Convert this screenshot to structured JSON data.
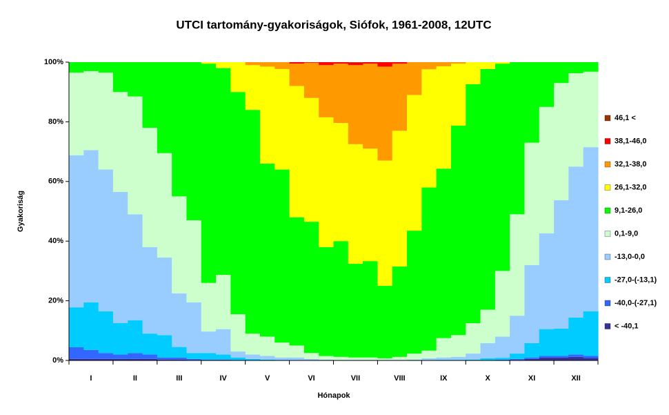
{
  "chart_data": {
    "type": "stacked_bar_100",
    "title": "UTCI tartomány-gyakoriságok, Siófok, 1961-2008, 12UTC",
    "x_label": "Hónapok",
    "y_label": "Gyakoriság",
    "categories": [
      null,
      "I",
      null,
      null,
      "II",
      null,
      null,
      "III",
      null,
      null,
      "IV",
      null,
      null,
      "V",
      null,
      null,
      "VI",
      null,
      null,
      "VII",
      null,
      null,
      "VIII",
      null,
      null,
      "IX",
      null,
      null,
      "X",
      null,
      null,
      "XI",
      null,
      null,
      "XII",
      null
    ],
    "ylim": [
      0,
      100
    ],
    "yticks": [
      {
        "value": 0,
        "label": "0%"
      },
      {
        "value": 20,
        "label": "20%"
      },
      {
        "value": 40,
        "label": "40%"
      },
      {
        "value": 60,
        "label": "60%"
      },
      {
        "value": 80,
        "label": "80%"
      },
      {
        "value": 100,
        "label": "100%"
      }
    ],
    "legend": "right",
    "series": [
      {
        "name": "< -40,1",
        "color": "#333399",
        "values": [
          0.5,
          0.5,
          0.5,
          0.5,
          0.5,
          0.5,
          0.3,
          0.3,
          0.2,
          0.1,
          0.1,
          0,
          0,
          0,
          0,
          0,
          0,
          0,
          0,
          0,
          0,
          0,
          0,
          0,
          0,
          0,
          0,
          0,
          0,
          0.1,
          0.2,
          0.5,
          1,
          1,
          1.2,
          0.8
        ]
      },
      {
        "name": "-40,0-(-27,1)",
        "color": "#3366ff",
        "values": [
          3.9,
          3.0,
          2.0,
          1.5,
          2.0,
          1.5,
          0.7,
          0.7,
          0.3,
          0.2,
          0.2,
          0.2,
          0,
          0,
          0,
          0,
          0,
          0,
          0,
          0,
          0,
          0,
          0,
          0,
          0,
          0,
          0,
          0,
          0.1,
          0.2,
          0.3,
          0.5,
          0.5,
          0.5,
          0.8,
          0.7
        ]
      },
      {
        "name": "-27,0-(-13,1)",
        "color": "#00ccff",
        "values": [
          13.4,
          16.0,
          14.0,
          10.5,
          11.0,
          7.0,
          7.5,
          3.5,
          2.0,
          2.2,
          1.7,
          0.8,
          0.5,
          0.3,
          0.2,
          0,
          0,
          0,
          0,
          0,
          0,
          0,
          0,
          0,
          0,
          0.2,
          0.2,
          0.3,
          0.6,
          0.6,
          1.8,
          4.8,
          9.0,
          9.2,
          12.4,
          15.0
        ]
      },
      {
        "name": "-13,0-0,0",
        "color": "#99ccff",
        "values": [
          51.0,
          51.0,
          47.5,
          44.0,
          35.5,
          29.0,
          26.0,
          18.0,
          17.0,
          7.2,
          8.5,
          2.0,
          1.5,
          1.2,
          0.8,
          1.0,
          0.5,
          0.3,
          0.2,
          0.2,
          0.2,
          0.2,
          0.2,
          0.3,
          0.7,
          0.8,
          1.0,
          2.0,
          5.1,
          7.1,
          12.7,
          26.2,
          32.1,
          43.0,
          50.6,
          55.0
        ]
      },
      {
        "name": "0,1-9,0",
        "color": "#ccffcc",
        "values": [
          27.7,
          26.5,
          32.5,
          33.5,
          39.5,
          40.0,
          35.0,
          32.5,
          27.5,
          16.3,
          18.2,
          12.5,
          7.0,
          6.5,
          5.0,
          4.0,
          2.0,
          1.2,
          1.0,
          0.8,
          0.8,
          0.5,
          1.0,
          2.0,
          2.6,
          6.5,
          7.3,
          10.2,
          11.2,
          22.0,
          34.0,
          41.0,
          42.4,
          39.3,
          31.3,
          25.3
        ]
      },
      {
        "name": "9,1-26,0",
        "color": "#00ff00",
        "values": [
          3.5,
          3.0,
          3.5,
          10.0,
          11.5,
          22.0,
          30.5,
          45.0,
          53.0,
          73.5,
          69.3,
          74.5,
          75.0,
          58.0,
          58.0,
          43.0,
          44.0,
          36.5,
          38.8,
          31.4,
          32.3,
          24.3,
          30.3,
          41.2,
          54.7,
          56.8,
          70.2,
          80.1,
          80.7,
          69.5,
          51.0,
          27.0,
          15.0,
          7.0,
          3.7,
          3.2
        ]
      },
      {
        "name": "26,1-32,0",
        "color": "#ffff00",
        "values": [
          0,
          0,
          0,
          0,
          0,
          0,
          0,
          0,
          0,
          0.5,
          2.0,
          10.0,
          15.0,
          32.5,
          33.7,
          44.0,
          41.5,
          43.5,
          39.6,
          40.1,
          37.7,
          42.0,
          45.5,
          45.5,
          39.6,
          34.3,
          20.8,
          7.4,
          2.3,
          0.5,
          0,
          0,
          0,
          0,
          0,
          0
        ]
      },
      {
        "name": "32,1-38,0",
        "color": "#ff9900",
        "values": [
          0,
          0,
          0,
          0,
          0,
          0,
          0,
          0,
          0,
          0,
          0,
          0,
          1.0,
          1.5,
          2.3,
          7.5,
          11.8,
          17.5,
          19.9,
          26.5,
          28.5,
          31.5,
          22.5,
          11.0,
          2.4,
          1.4,
          0.5,
          0,
          0,
          0,
          0,
          0,
          0,
          0,
          0,
          0
        ]
      },
      {
        "name": "38,1-46,0",
        "color": "#ff0000",
        "values": [
          0,
          0,
          0,
          0,
          0,
          0,
          0,
          0,
          0,
          0,
          0,
          0,
          0,
          0,
          0,
          0.5,
          0.2,
          1.0,
          0.5,
          0.8,
          0.5,
          1.5,
          0.5,
          0,
          0,
          0,
          0,
          0,
          0,
          0,
          0,
          0,
          0,
          0,
          0,
          0
        ]
      },
      {
        "name": "46,1 <",
        "color": "#993300",
        "values": [
          0,
          0,
          0,
          0,
          0,
          0,
          0,
          0,
          0,
          0,
          0,
          0,
          0,
          0,
          0,
          0,
          0,
          0,
          0,
          0.2,
          0,
          0,
          0,
          0,
          0,
          0,
          0,
          0,
          0,
          0,
          0,
          0,
          0,
          0,
          0,
          0
        ]
      }
    ]
  }
}
